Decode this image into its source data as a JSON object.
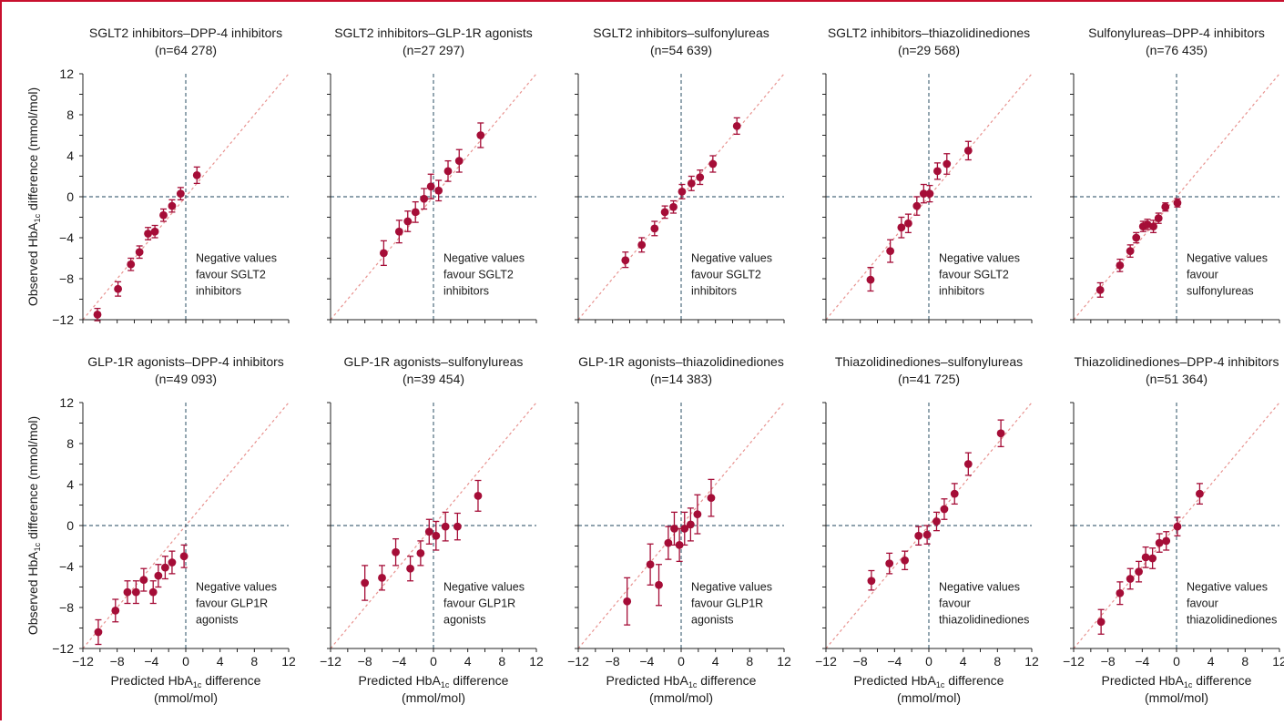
{
  "figure": {
    "y_axis_label": "Observed HbA1c difference (mmol/mol)",
    "x_axis_label_line1": "Predicted HbA1c difference",
    "x_axis_label_line2": "(mmol/mol)",
    "colors": {
      "marker": "#a50d37",
      "errorbar": "#a50d37",
      "identity_line": "#e8928f",
      "zero_line": "#4c6b7d",
      "axis": "#222222",
      "frame_accent": "#c8102e"
    }
  },
  "chart_data": [
    {
      "type": "scatter",
      "title": "SGLT2 inhibitors–DPP-4 inhibitors",
      "n_label": "(n=64 278)",
      "note": [
        "Negative values",
        "favour SGLT2",
        "inhibitors"
      ],
      "xlim": [
        -12,
        12
      ],
      "ylim": [
        -12,
        12
      ],
      "x_ticks": [
        -12,
        -8,
        -4,
        0,
        4,
        8,
        12
      ],
      "y_ticks": [
        -12,
        -8,
        -4,
        0,
        4,
        8,
        12
      ],
      "identity_line": true,
      "points": [
        {
          "x": -10.3,
          "y": -11.5,
          "lo": -12.1,
          "hi": -10.9
        },
        {
          "x": -7.9,
          "y": -9.0,
          "lo": -9.7,
          "hi": -8.3
        },
        {
          "x": -6.4,
          "y": -6.6,
          "lo": -7.2,
          "hi": -6.0
        },
        {
          "x": -5.4,
          "y": -5.4,
          "lo": -6.0,
          "hi": -4.8
        },
        {
          "x": -4.4,
          "y": -3.6,
          "lo": -4.2,
          "hi": -3.0
        },
        {
          "x": -3.6,
          "y": -3.4,
          "lo": -4.0,
          "hi": -2.8
        },
        {
          "x": -2.6,
          "y": -1.8,
          "lo": -2.4,
          "hi": -1.2
        },
        {
          "x": -1.6,
          "y": -0.9,
          "lo": -1.5,
          "hi": -0.3
        },
        {
          "x": -0.6,
          "y": 0.3,
          "lo": -0.3,
          "hi": 0.9
        },
        {
          "x": 1.3,
          "y": 2.1,
          "lo": 1.3,
          "hi": 2.9
        }
      ]
    },
    {
      "type": "scatter",
      "title": "SGLT2 inhibitors–GLP-1R agonists",
      "n_label": "(n=27 297)",
      "note": [
        "Negative values",
        "favour SGLT2",
        "inhibitors"
      ],
      "xlim": [
        -12,
        12
      ],
      "ylim": [
        -12,
        12
      ],
      "x_ticks": [
        -12,
        -8,
        -4,
        0,
        4,
        8,
        12
      ],
      "y_ticks": [
        -12,
        -8,
        -4,
        0,
        4,
        8,
        12
      ],
      "identity_line": true,
      "points": [
        {
          "x": -5.8,
          "y": -5.5,
          "lo": -6.7,
          "hi": -4.3
        },
        {
          "x": -4.0,
          "y": -3.4,
          "lo": -4.5,
          "hi": -2.3
        },
        {
          "x": -3.0,
          "y": -2.4,
          "lo": -3.4,
          "hi": -1.4
        },
        {
          "x": -2.1,
          "y": -1.5,
          "lo": -2.5,
          "hi": -0.5
        },
        {
          "x": -1.1,
          "y": -0.2,
          "lo": -1.2,
          "hi": 0.8
        },
        {
          "x": -0.3,
          "y": 1.0,
          "lo": -0.2,
          "hi": 2.2
        },
        {
          "x": 0.6,
          "y": 0.6,
          "lo": -0.4,
          "hi": 1.6
        },
        {
          "x": 1.7,
          "y": 2.5,
          "lo": 1.5,
          "hi": 3.5
        },
        {
          "x": 3.0,
          "y": 3.5,
          "lo": 2.4,
          "hi": 4.6
        },
        {
          "x": 5.5,
          "y": 6.0,
          "lo": 4.8,
          "hi": 7.2
        }
      ]
    },
    {
      "type": "scatter",
      "title": "SGLT2 inhibitors–sulfonylureas",
      "n_label": "(n=54 639)",
      "note": [
        "Negative values",
        "favour SGLT2",
        "inhibitors"
      ],
      "xlim": [
        -12,
        12
      ],
      "ylim": [
        -12,
        12
      ],
      "x_ticks": [
        -12,
        -8,
        -4,
        0,
        4,
        8,
        12
      ],
      "y_ticks": [
        -12,
        -8,
        -4,
        0,
        4,
        8,
        12
      ],
      "identity_line": true,
      "points": [
        {
          "x": -6.5,
          "y": -6.2,
          "lo": -6.9,
          "hi": -5.4
        },
        {
          "x": -4.6,
          "y": -4.7,
          "lo": -5.4,
          "hi": -4.0
        },
        {
          "x": -3.1,
          "y": -3.1,
          "lo": -3.8,
          "hi": -2.4
        },
        {
          "x": -1.9,
          "y": -1.5,
          "lo": -2.1,
          "hi": -0.9
        },
        {
          "x": -0.9,
          "y": -1.0,
          "lo": -1.6,
          "hi": -0.4
        },
        {
          "x": 0.1,
          "y": 0.5,
          "lo": -0.2,
          "hi": 1.2
        },
        {
          "x": 1.2,
          "y": 1.3,
          "lo": 0.6,
          "hi": 2.0
        },
        {
          "x": 2.2,
          "y": 1.9,
          "lo": 1.2,
          "hi": 2.6
        },
        {
          "x": 3.7,
          "y": 3.2,
          "lo": 2.4,
          "hi": 4.0
        },
        {
          "x": 6.5,
          "y": 6.9,
          "lo": 6.1,
          "hi": 7.7
        }
      ]
    },
    {
      "type": "scatter",
      "title": "SGLT2 inhibitors–thiazolidinediones",
      "n_label": "(n=29 568)",
      "note": [
        "Negative values",
        "favour SGLT2",
        "inhibitors"
      ],
      "xlim": [
        -12,
        12
      ],
      "ylim": [
        -12,
        12
      ],
      "x_ticks": [
        -12,
        -8,
        -4,
        0,
        4,
        8,
        12
      ],
      "y_ticks": [
        -12,
        -8,
        -4,
        0,
        4,
        8,
        12
      ],
      "identity_line": true,
      "points": [
        {
          "x": -6.8,
          "y": -8.1,
          "lo": -9.2,
          "hi": -6.9
        },
        {
          "x": -4.5,
          "y": -5.3,
          "lo": -6.4,
          "hi": -4.2
        },
        {
          "x": -3.2,
          "y": -3.0,
          "lo": -4.0,
          "hi": -2.0
        },
        {
          "x": -2.4,
          "y": -2.6,
          "lo": -3.5,
          "hi": -1.7
        },
        {
          "x": -1.4,
          "y": -0.9,
          "lo": -1.8,
          "hi": 0.0
        },
        {
          "x": -0.6,
          "y": 0.3,
          "lo": -0.6,
          "hi": 1.2
        },
        {
          "x": 0.1,
          "y": 0.3,
          "lo": -0.5,
          "hi": 1.1
        },
        {
          "x": 1.0,
          "y": 2.5,
          "lo": 1.7,
          "hi": 3.3
        },
        {
          "x": 2.1,
          "y": 3.2,
          "lo": 2.2,
          "hi": 4.2
        },
        {
          "x": 4.6,
          "y": 4.5,
          "lo": 3.6,
          "hi": 5.4
        }
      ]
    },
    {
      "type": "scatter",
      "title": "Sulfonylureas–DPP-4 inhibitors",
      "n_label": "(n=76 435)",
      "note": [
        "Negative values",
        "favour",
        "sulfonylureas"
      ],
      "xlim": [
        -12,
        12
      ],
      "ylim": [
        -12,
        12
      ],
      "x_ticks": [
        -12,
        -8,
        -4,
        0,
        4,
        8,
        12
      ],
      "y_ticks": [
        -12,
        -8,
        -4,
        0,
        4,
        8,
        12
      ],
      "identity_line": true,
      "points": [
        {
          "x": -8.9,
          "y": -9.1,
          "lo": -9.8,
          "hi": -8.4
        },
        {
          "x": -6.6,
          "y": -6.7,
          "lo": -7.3,
          "hi": -6.1
        },
        {
          "x": -5.4,
          "y": -5.3,
          "lo": -5.9,
          "hi": -4.7
        },
        {
          "x": -4.7,
          "y": -4.0,
          "lo": -4.5,
          "hi": -3.5
        },
        {
          "x": -3.9,
          "y": -2.9,
          "lo": -3.4,
          "hi": -2.4
        },
        {
          "x": -3.4,
          "y": -2.7,
          "lo": -3.2,
          "hi": -2.2
        },
        {
          "x": -2.7,
          "y": -2.9,
          "lo": -3.5,
          "hi": -2.3
        },
        {
          "x": -2.1,
          "y": -2.1,
          "lo": -2.6,
          "hi": -1.6
        },
        {
          "x": -1.3,
          "y": -1.0,
          "lo": -1.4,
          "hi": -0.6
        },
        {
          "x": 0.1,
          "y": -0.6,
          "lo": -1.0,
          "hi": -0.2
        }
      ]
    },
    {
      "type": "scatter",
      "title": "GLP-1R agonists–DPP-4 inhibitors",
      "n_label": "(n=49 093)",
      "note": [
        "Negative values",
        "favour GLP1R",
        "agonists"
      ],
      "xlim": [
        -12,
        12
      ],
      "ylim": [
        -12,
        12
      ],
      "x_ticks": [
        -12,
        -8,
        -4,
        0,
        4,
        8,
        12
      ],
      "y_ticks": [
        -12,
        -8,
        -4,
        0,
        4,
        8,
        12
      ],
      "identity_line": true,
      "points": [
        {
          "x": -10.2,
          "y": -10.4,
          "lo": -11.6,
          "hi": -9.2
        },
        {
          "x": -8.2,
          "y": -8.3,
          "lo": -9.4,
          "hi": -7.2
        },
        {
          "x": -6.8,
          "y": -6.5,
          "lo": -7.6,
          "hi": -5.4
        },
        {
          "x": -5.8,
          "y": -6.5,
          "lo": -7.6,
          "hi": -5.4
        },
        {
          "x": -4.9,
          "y": -5.3,
          "lo": -6.4,
          "hi": -4.2
        },
        {
          "x": -3.8,
          "y": -6.5,
          "lo": -7.6,
          "hi": -5.4
        },
        {
          "x": -3.2,
          "y": -4.9,
          "lo": -6.0,
          "hi": -3.8
        },
        {
          "x": -2.4,
          "y": -4.1,
          "lo": -5.2,
          "hi": -3.0
        },
        {
          "x": -1.6,
          "y": -3.6,
          "lo": -4.7,
          "hi": -2.5
        },
        {
          "x": -0.2,
          "y": -3.0,
          "lo": -4.1,
          "hi": -1.9
        }
      ]
    },
    {
      "type": "scatter",
      "title": "GLP-1R agonists–sulfonylureas",
      "n_label": "(n=39 454)",
      "note": [
        "Negative values",
        "favour GLP1R",
        "agonists"
      ],
      "xlim": [
        -12,
        12
      ],
      "ylim": [
        -12,
        12
      ],
      "x_ticks": [
        -12,
        -8,
        -4,
        0,
        4,
        8,
        12
      ],
      "y_ticks": [
        -12,
        -8,
        -4,
        0,
        4,
        8,
        12
      ],
      "identity_line": true,
      "points": [
        {
          "x": -8.0,
          "y": -5.6,
          "lo": -7.3,
          "hi": -3.9
        },
        {
          "x": -6.0,
          "y": -5.1,
          "lo": -6.3,
          "hi": -3.9
        },
        {
          "x": -4.4,
          "y": -2.6,
          "lo": -3.9,
          "hi": -1.3
        },
        {
          "x": -2.7,
          "y": -4.2,
          "lo": -5.4,
          "hi": -3.0
        },
        {
          "x": -1.5,
          "y": -2.7,
          "lo": -3.9,
          "hi": -1.5
        },
        {
          "x": -0.5,
          "y": -0.6,
          "lo": -1.8,
          "hi": 0.6
        },
        {
          "x": 0.3,
          "y": -1.0,
          "lo": -2.4,
          "hi": 0.4
        },
        {
          "x": 1.4,
          "y": -0.1,
          "lo": -1.5,
          "hi": 1.3
        },
        {
          "x": 2.8,
          "y": -0.1,
          "lo": -1.4,
          "hi": 1.2
        },
        {
          "x": 5.2,
          "y": 2.9,
          "lo": 1.4,
          "hi": 4.4
        }
      ]
    },
    {
      "type": "scatter",
      "title": "GLP-1R agonists–thiazolidinediones",
      "n_label": "(n=14 383)",
      "note": [
        "Negative values",
        "favour GLP1R",
        "agonists"
      ],
      "xlim": [
        -12,
        12
      ],
      "ylim": [
        -12,
        12
      ],
      "x_ticks": [
        -12,
        -8,
        -4,
        0,
        4,
        8,
        12
      ],
      "y_ticks": [
        -12,
        -8,
        -4,
        0,
        4,
        8,
        12
      ],
      "identity_line": true,
      "points": [
        {
          "x": -6.3,
          "y": -7.4,
          "lo": -9.7,
          "hi": -5.1
        },
        {
          "x": -3.6,
          "y": -3.8,
          "lo": -5.8,
          "hi": -1.8
        },
        {
          "x": -2.6,
          "y": -5.8,
          "lo": -7.8,
          "hi": -3.8
        },
        {
          "x": -1.5,
          "y": -1.7,
          "lo": -3.3,
          "hi": -0.1
        },
        {
          "x": -0.8,
          "y": -0.3,
          "lo": -1.9,
          "hi": 1.3
        },
        {
          "x": -0.2,
          "y": -1.9,
          "lo": -3.5,
          "hi": -0.3
        },
        {
          "x": 0.4,
          "y": -0.3,
          "lo": -1.9,
          "hi": 1.3
        },
        {
          "x": 1.1,
          "y": 0.1,
          "lo": -1.5,
          "hi": 1.7
        },
        {
          "x": 1.9,
          "y": 1.1,
          "lo": -0.8,
          "hi": 3.0
        },
        {
          "x": 3.5,
          "y": 2.7,
          "lo": 0.9,
          "hi": 4.5
        }
      ]
    },
    {
      "type": "scatter",
      "title": "Thiazolidinediones–sulfonylureas",
      "n_label": "(n=41 725)",
      "note": [
        "Negative values",
        "favour",
        "thiazolidinediones"
      ],
      "xlim": [
        -12,
        12
      ],
      "ylim": [
        -12,
        12
      ],
      "x_ticks": [
        -12,
        -8,
        -4,
        0,
        4,
        8,
        12
      ],
      "y_ticks": [
        -12,
        -8,
        -4,
        0,
        4,
        8,
        12
      ],
      "identity_line": true,
      "points": [
        {
          "x": -6.7,
          "y": -5.4,
          "lo": -6.3,
          "hi": -4.4
        },
        {
          "x": -4.6,
          "y": -3.7,
          "lo": -4.7,
          "hi": -2.7
        },
        {
          "x": -2.8,
          "y": -3.4,
          "lo": -4.3,
          "hi": -2.5
        },
        {
          "x": -1.2,
          "y": -1.0,
          "lo": -1.9,
          "hi": -0.1
        },
        {
          "x": -0.2,
          "y": -0.9,
          "lo": -1.8,
          "hi": 0.0
        },
        {
          "x": 0.9,
          "y": 0.4,
          "lo": -0.5,
          "hi": 1.3
        },
        {
          "x": 1.8,
          "y": 1.6,
          "lo": 0.6,
          "hi": 2.6
        },
        {
          "x": 3.0,
          "y": 3.1,
          "lo": 2.1,
          "hi": 4.1
        },
        {
          "x": 4.6,
          "y": 6.0,
          "lo": 4.9,
          "hi": 7.1
        },
        {
          "x": 8.4,
          "y": 9.0,
          "lo": 7.7,
          "hi": 10.3
        }
      ]
    },
    {
      "type": "scatter",
      "title": "Thiazolidinediones–DPP-4 inhibitors",
      "n_label": "(n=51 364)",
      "note": [
        "Negative values",
        "favour",
        "thiazolidinediones"
      ],
      "xlim": [
        -12,
        12
      ],
      "ylim": [
        -12,
        12
      ],
      "x_ticks": [
        -12,
        -8,
        -4,
        0,
        4,
        8,
        12
      ],
      "y_ticks": [
        -12,
        -8,
        -4,
        0,
        4,
        8,
        12
      ],
      "identity_line": true,
      "points": [
        {
          "x": -8.8,
          "y": -9.4,
          "lo": -10.6,
          "hi": -8.2
        },
        {
          "x": -6.6,
          "y": -6.6,
          "lo": -7.7,
          "hi": -5.5
        },
        {
          "x": -5.4,
          "y": -5.2,
          "lo": -6.2,
          "hi": -4.2
        },
        {
          "x": -4.4,
          "y": -4.5,
          "lo": -5.5,
          "hi": -3.5
        },
        {
          "x": -3.6,
          "y": -3.1,
          "lo": -4.1,
          "hi": -2.1
        },
        {
          "x": -2.8,
          "y": -3.2,
          "lo": -4.2,
          "hi": -2.2
        },
        {
          "x": -2.0,
          "y": -1.7,
          "lo": -2.6,
          "hi": -0.8
        },
        {
          "x": -1.2,
          "y": -1.5,
          "lo": -2.4,
          "hi": -0.6
        },
        {
          "x": 0.1,
          "y": -0.1,
          "lo": -1.0,
          "hi": 0.8
        },
        {
          "x": 2.7,
          "y": 3.1,
          "lo": 2.1,
          "hi": 4.1
        }
      ]
    }
  ]
}
